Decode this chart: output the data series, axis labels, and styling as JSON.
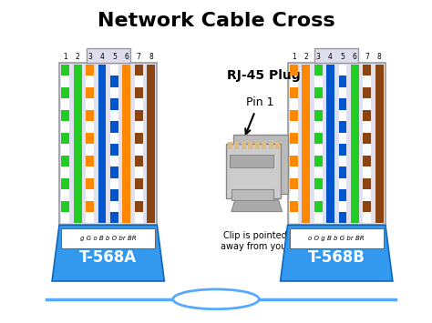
{
  "title": "Network Cable Cross",
  "bg_color": "#ffffff",
  "title_fontsize": 16,
  "title_fontweight": "bold",
  "label_568A": "T-568A",
  "label_568B": "T-568B",
  "rj45_label": "RJ-45 Plug",
  "pin1_label": "Pin 1",
  "clip_label": "Clip is pointed\naway from you.",
  "568A_pins": [
    "g",
    "G",
    "o",
    "B",
    "b",
    "O",
    "br",
    "BR"
  ],
  "568B_pins": [
    "o",
    "O",
    "g",
    "B",
    "b",
    "G",
    "br",
    "BR"
  ],
  "wire_colors_568A": [
    [
      "#ffffff",
      "#22cc22"
    ],
    [
      "#22cc22",
      "#22cc22"
    ],
    [
      "#ffffff",
      "#ff8800"
    ],
    [
      "#0055cc",
      "#0055cc"
    ],
    [
      "#0055cc",
      "#ffffff"
    ],
    [
      "#ff8800",
      "#ff8800"
    ],
    [
      "#ffffff",
      "#8B4513"
    ],
    [
      "#8B4513",
      "#8B4513"
    ]
  ],
  "wire_colors_568B": [
    [
      "#ffffff",
      "#ff8800"
    ],
    [
      "#ff8800",
      "#ff8800"
    ],
    [
      "#ffffff",
      "#22cc22"
    ],
    [
      "#0055cc",
      "#0055cc"
    ],
    [
      "#0055cc",
      "#ffffff"
    ],
    [
      "#22cc22",
      "#22cc22"
    ],
    [
      "#ffffff",
      "#8B4513"
    ],
    [
      "#8B4513",
      "#8B4513"
    ]
  ],
  "connector_fill": "#e0e0ee",
  "connector_border": "#999999",
  "blue_color": "#3399ee",
  "blue_dark": "#1166bb",
  "pin_numbers": [
    "1",
    "2",
    "3",
    "4",
    "5",
    "6",
    "7",
    "8"
  ],
  "cable_color": "#55aaff",
  "wire_bg": "#ccccdd"
}
